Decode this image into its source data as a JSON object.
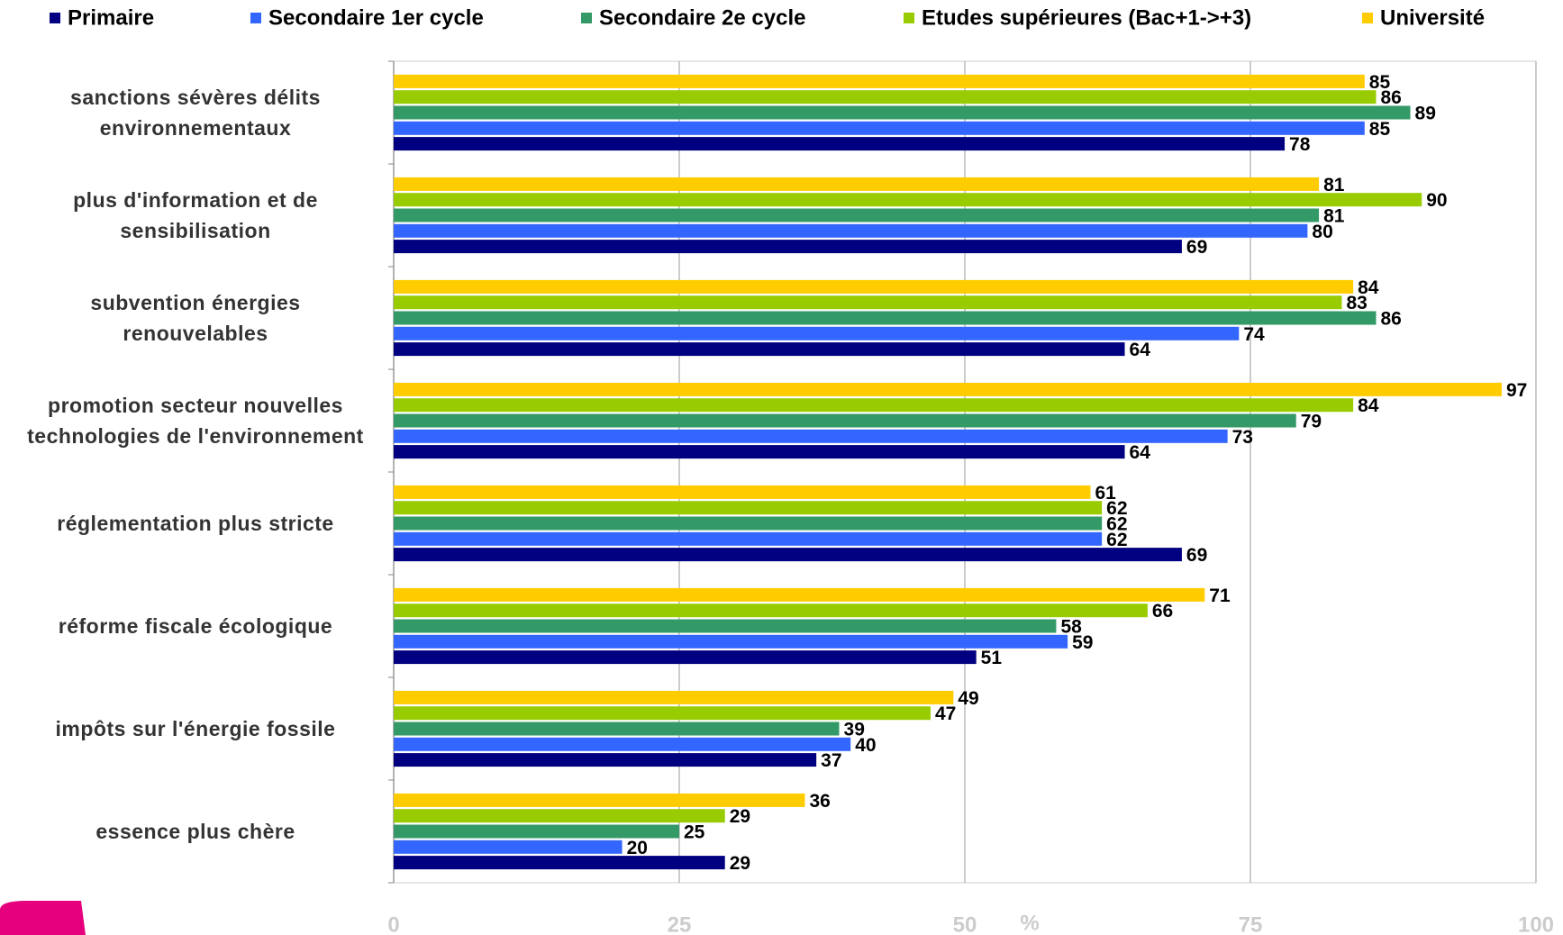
{
  "chart_data": {
    "type": "bar",
    "orientation": "horizontal",
    "x_label": "%",
    "categories": [
      "sanctions sévères délits environnementaux",
      "plus d'information et de sensibilisation",
      "subvention énergies renouvelables",
      "promotion secteur nouvelles technologies de l'environnement",
      "réglementation plus stricte",
      "réforme fiscale écologique",
      "impôts sur l'énergie fossile",
      "essence plus chère"
    ],
    "series": [
      {
        "name": "Primaire",
        "color": "#000080",
        "values": [
          78,
          69,
          64,
          64,
          69,
          51,
          37,
          29
        ]
      },
      {
        "name": "Secondaire 1er cycle",
        "color": "#3366ff",
        "values": [
          85,
          80,
          74,
          73,
          62,
          59,
          40,
          20
        ]
      },
      {
        "name": "Secondaire 2e cycle",
        "color": "#339966",
        "values": [
          89,
          81,
          86,
          79,
          62,
          58,
          39,
          25
        ]
      },
      {
        "name": "Etudes supérieures (Bac+1->+3)",
        "color": "#99cc00",
        "values": [
          86,
          90,
          83,
          84,
          62,
          66,
          47,
          29
        ]
      },
      {
        "name": "Université",
        "color": "#ffcc00",
        "values": [
          85,
          81,
          84,
          97,
          61,
          71,
          49,
          36
        ]
      }
    ],
    "xlim": [
      0,
      100
    ],
    "xticks": [
      0,
      25,
      50,
      75,
      100
    ],
    "grid": true,
    "legend": "top"
  }
}
